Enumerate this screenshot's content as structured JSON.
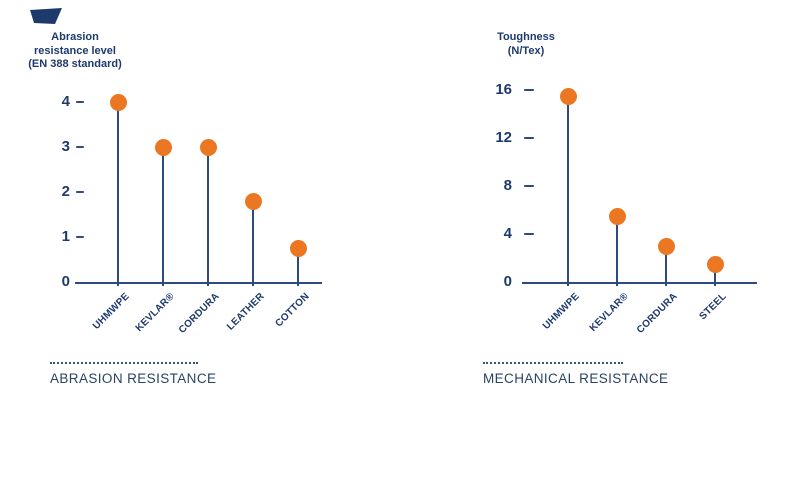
{
  "colors": {
    "navy_text": "#1e3a6c",
    "axis_navy": "#2d4b7e",
    "orange": "#ec7722",
    "background": "#ffffff"
  },
  "brand_mark": "angular-navy-logo-mark",
  "chart_data": [
    {
      "type": "lollipop",
      "title": "Abrasion resistance level (EN 388 standard)",
      "title_lines": [
        "Abrasion",
        "resistance level",
        "(EN 388 standard)"
      ],
      "caption": "ABRASION RESISTANCE",
      "categories": [
        "UHMWPE",
        "KEVLAR®",
        "CORDURA",
        "LEATHER",
        "COTTON"
      ],
      "values": [
        4,
        3,
        3,
        1.8,
        0.75
      ],
      "yticks": [
        0,
        1,
        2,
        3,
        4
      ],
      "ylim": [
        0,
        4.3
      ],
      "xlabel": "",
      "ylabel": "Abrasion resistance level (EN 388 standard)",
      "grid": false,
      "legend": "none",
      "label_rotation_deg": -45,
      "marker_color": "#ec7722",
      "stem_color": "#2d4b7e"
    },
    {
      "type": "lollipop",
      "title": "Toughness (N/Tex)",
      "title_lines": [
        "Toughness",
        "(N/Tex)"
      ],
      "caption": "MECHANICAL RESISTANCE",
      "categories": [
        "UHMWPE",
        "KEVLAR®",
        "CORDURA",
        "STEEL"
      ],
      "values": [
        15.5,
        5.5,
        3,
        1.5
      ],
      "yticks": [
        0,
        4,
        8,
        12,
        16
      ],
      "ylim": [
        0,
        17
      ],
      "xlabel": "",
      "ylabel": "Toughness (N/Tex)",
      "grid": false,
      "legend": "none",
      "label_rotation_deg": -45,
      "marker_color": "#ec7722",
      "stem_color": "#2d4b7e"
    }
  ]
}
